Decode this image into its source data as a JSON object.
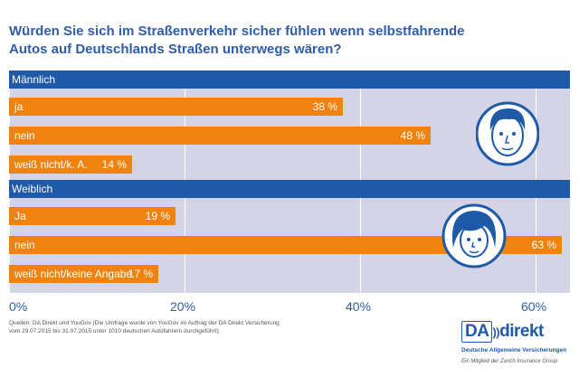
{
  "title": "Würden Sie sich im Straßenverkehr sicher fühlen wenn selbstfahrende Autos auf Deutschlands Straßen unterwegs wären?",
  "chart_data": {
    "type": "bar",
    "orientation": "horizontal",
    "xlim": [
      0,
      63
    ],
    "ticks": [
      "0%",
      "20%",
      "40%",
      "60%"
    ],
    "groups": [
      {
        "name": "Männlich",
        "categories": [
          "ja",
          "nein",
          "weiß nicht/k. A."
        ],
        "values": [
          38,
          48,
          14
        ],
        "value_labels": [
          "38 %",
          "48 %",
          "14 %"
        ]
      },
      {
        "name": "Weiblich",
        "categories": [
          "Ja",
          "nein",
          "weiß nicht/keine Angabe"
        ],
        "values": [
          19,
          63,
          17
        ],
        "value_labels": [
          "19 %",
          "63 %",
          "17 %"
        ]
      }
    ]
  },
  "source": {
    "line1": "Quellen: DA Direkt und YouGov (Die Umfrage wurde von YouGov im Auftrag der DA Direkt Versicherung",
    "line2": "vom 29.07.2015 bis 31.07.2015 unter 1010 deutschen Autofahrern durchgeführt)."
  },
  "logo": {
    "da": "DA",
    "direkt": "direkt",
    "subtitle": "Deutsche Allgemeine Versicherungen",
    "tagline": "Ein Mitglied der Zurich Insurance Group"
  },
  "colors": {
    "band": "#1f5aa8",
    "bar": "#f0820f",
    "plot_bg": "#d3d5e6",
    "title": "#2f5da8"
  }
}
